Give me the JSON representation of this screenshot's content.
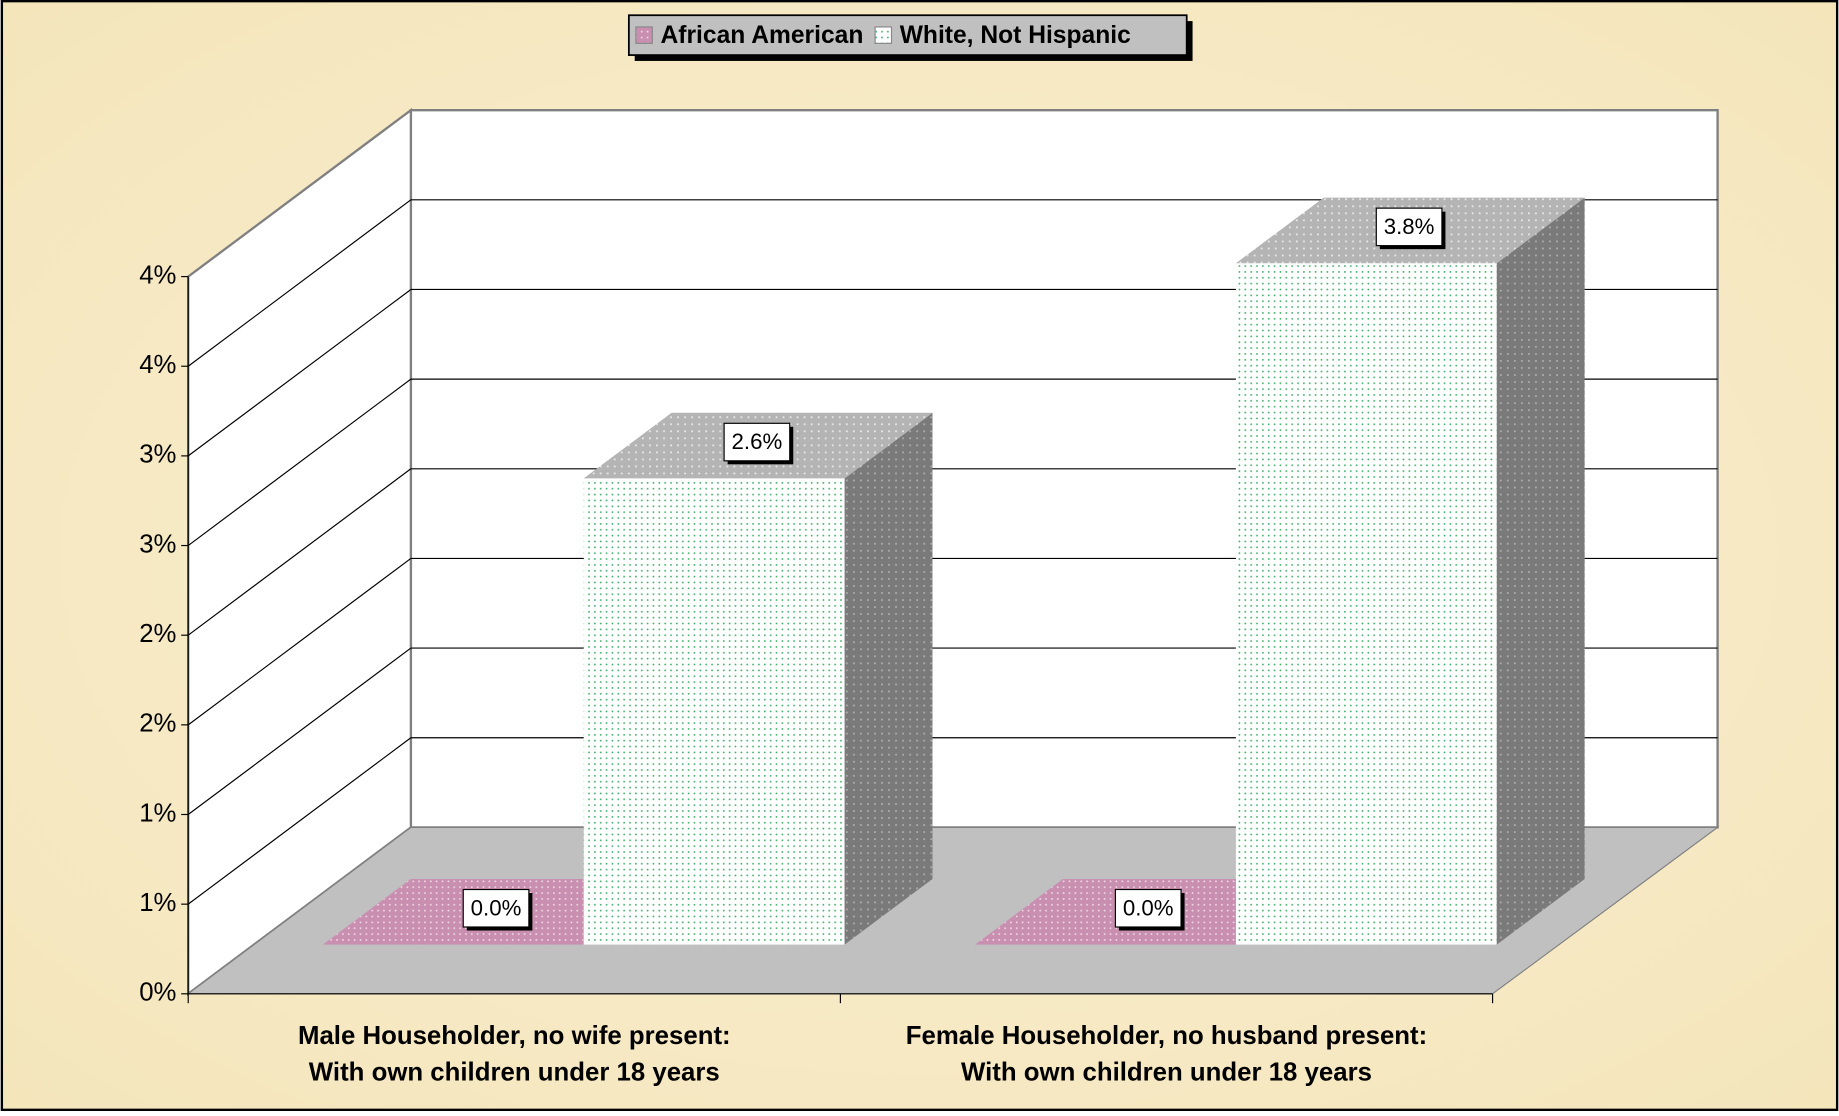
{
  "chart_data": {
    "type": "bar3d",
    "categories": [
      "Male Householder, no wife present:\nWith own children under 18 years",
      "Female Householder, no husband present:\nWith own children under 18 years"
    ],
    "series": [
      {
        "name": "African American",
        "color": "#c98fb0",
        "values": [
          0.0,
          0.0
        ],
        "value_labels": [
          "0.0%",
          "0.0%"
        ]
      },
      {
        "name": "White, Not Hispanic",
        "color": "#ffffff",
        "values": [
          2.6,
          3.8
        ],
        "value_labels": [
          "2.6%",
          "3.8%"
        ]
      }
    ],
    "ylim": [
      0,
      4
    ],
    "yticks": [
      {
        "value": 0,
        "label": "0%"
      },
      {
        "value": 0.5,
        "label": "1%"
      },
      {
        "value": 1,
        "label": "1%"
      },
      {
        "value": 1.5,
        "label": "2%"
      },
      {
        "value": 2,
        "label": "2%"
      },
      {
        "value": 2.5,
        "label": "3%"
      },
      {
        "value": 3,
        "label": "3%"
      },
      {
        "value": 3.5,
        "label": "4%"
      },
      {
        "value": 4,
        "label": "4%"
      }
    ],
    "grid": true,
    "legend": "top"
  }
}
